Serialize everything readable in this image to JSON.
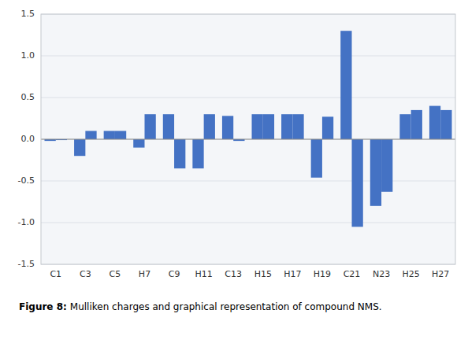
{
  "chart_data": {
    "type": "bar",
    "categories": [
      "C1",
      "C3",
      "C5",
      "H7",
      "C9",
      "H11",
      "C13",
      "H15",
      "H17",
      "H19",
      "C21",
      "N23",
      "H25",
      "H27"
    ],
    "series": [
      {
        "color": "#4472C4",
        "values": [
          -0.02,
          -0.2,
          0.1,
          -0.1,
          0.3,
          -0.35,
          0.28,
          0.3,
          0.3,
          -0.46,
          1.3,
          -0.8,
          0.3,
          0.4
        ]
      },
      {
        "color": "#4472C4",
        "values": [
          -0.01,
          0.1,
          0.1,
          0.3,
          -0.35,
          0.3,
          -0.02,
          0.3,
          0.3,
          0.27,
          -1.05,
          -0.63,
          0.35,
          0.35
        ]
      }
    ],
    "ylim": [
      -1.5,
      1.5
    ],
    "yticks": [
      -1.5,
      {
        "value": -1.0,
        "label": "-1.0"
      },
      -0.5,
      {
        "value": 0.0,
        "label": "0.0"
      },
      0.5,
      {
        "value": 1.0,
        "label": "1.0"
      },
      1.5
    ],
    "grid": true,
    "annotations": [
      "Figure 8:",
      "Mulliken charges and graphical representation of compound NMS."
    ]
  }
}
